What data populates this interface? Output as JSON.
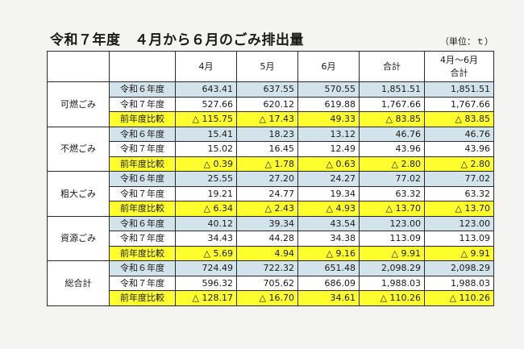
{
  "title": "令和７年度　４月から６月のごみ排出量",
  "unit": "（単位：ｔ）",
  "headers": [
    "4月",
    "5月",
    "6月",
    "合計",
    "4月～6月",
    "合計"
  ],
  "row_labels": [
    "令和６年度",
    "令和７年度",
    "前年度比較"
  ],
  "categories": [
    {
      "name": "可燃ごみ",
      "r6": [
        "643.41",
        "637.55",
        "570.55",
        "1,851.51",
        "1,851.51"
      ],
      "r7": [
        "527.66",
        "620.12",
        "619.88",
        "1,767.66",
        "1,767.66"
      ],
      "cmp": [
        "△ 115.75",
        "△ 17.43",
        "49.33",
        "△ 83.85",
        "△ 83.85"
      ]
    },
    {
      "name": "不燃ごみ",
      "r6": [
        "15.41",
        "18.23",
        "13.12",
        "46.76",
        "46.76"
      ],
      "r7": [
        "15.02",
        "16.45",
        "12.49",
        "43.96",
        "43.96"
      ],
      "cmp": [
        "△ 0.39",
        "△ 1.78",
        "△ 0.63",
        "△ 2.80",
        "△ 2.80"
      ]
    },
    {
      "name": "粗大ごみ",
      "r6": [
        "25.55",
        "27.20",
        "24.27",
        "77.02",
        "77.02"
      ],
      "r7": [
        "19.21",
        "24.77",
        "19.34",
        "63.32",
        "63.32"
      ],
      "cmp": [
        "△ 6.34",
        "△ 2.43",
        "△ 4.93",
        "△ 13.70",
        "△ 13.70"
      ]
    },
    {
      "name": "資源ごみ",
      "r6": [
        "40.12",
        "39.34",
        "43.54",
        "123.00",
        "123.00"
      ],
      "r7": [
        "34.43",
        "44.28",
        "34.38",
        "113.09",
        "113.09"
      ],
      "cmp": [
        "△ 5.69",
        "4.94",
        "△ 9.16",
        "△ 9.91",
        "△ 9.91"
      ]
    },
    {
      "name": "総合計",
      "r6": [
        "724.49",
        "722.32",
        "651.48",
        "2,098.29",
        "2,098.29"
      ],
      "r7": [
        "596.32",
        "705.62",
        "686.09",
        "1,988.03",
        "1,988.03"
      ],
      "cmp": [
        "△ 128.17",
        "△ 16.70",
        "34.61",
        "△ 110.26",
        "△ 110.26"
      ]
    }
  ],
  "colors": {
    "prev_year_row": "#d3e3eb",
    "compare_row": "#ffff2e"
  }
}
